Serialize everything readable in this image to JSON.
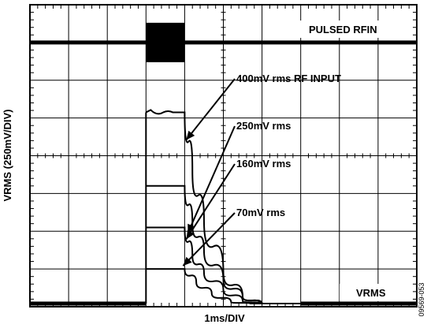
{
  "chart_data": {
    "type": "line",
    "xlabel": "1ms/DIV",
    "ylabel": "VRMS (250mV/DIV)",
    "grid": true,
    "divisions": {
      "x": 10,
      "y": 8
    },
    "x_unit_per_div": "1ms",
    "y_unit_per_div": "250mV",
    "x_range_div": [
      0,
      10
    ],
    "y_range_div": [
      0,
      8
    ],
    "pulse": {
      "start_div": 3.0,
      "end_div": 4.0
    },
    "trace_labels": {
      "rf_pulse": "PULSED RFIN",
      "vrms": "VRMS"
    },
    "series": [
      {
        "name": "400mV rms RF INPUT",
        "plateau_div": 5.15,
        "decay_x_div": [
          4.0,
          4.2,
          4.5,
          5.0,
          5.5,
          6.0,
          6.5,
          7.0
        ],
        "decay_y_div": [
          5.15,
          3.6,
          2.3,
          0.9,
          0.25,
          0.05,
          0.0,
          0.0
        ]
      },
      {
        "name": "250mV rms",
        "plateau_div": 3.2,
        "decay_x_div": [
          4.0,
          4.2,
          4.5,
          5.0,
          5.5,
          6.0,
          6.5,
          7.0
        ],
        "decay_y_div": [
          3.2,
          2.2,
          1.5,
          0.7,
          0.25,
          0.05,
          0.0,
          0.0
        ]
      },
      {
        "name": "160mV rms",
        "plateau_div": 2.1,
        "decay_x_div": [
          4.0,
          4.2,
          4.5,
          5.0,
          5.5,
          6.0,
          6.5
        ],
        "decay_y_div": [
          2.1,
          1.35,
          0.9,
          0.45,
          0.15,
          0.0,
          0.0
        ]
      },
      {
        "name": "70mV rms",
        "plateau_div": 1.0,
        "decay_x_div": [
          4.0,
          4.3,
          4.7,
          5.2,
          5.7,
          6.2
        ],
        "decay_y_div": [
          1.0,
          0.65,
          0.35,
          0.12,
          0.02,
          0.0
        ]
      }
    ],
    "figure_id": "09569-053"
  }
}
